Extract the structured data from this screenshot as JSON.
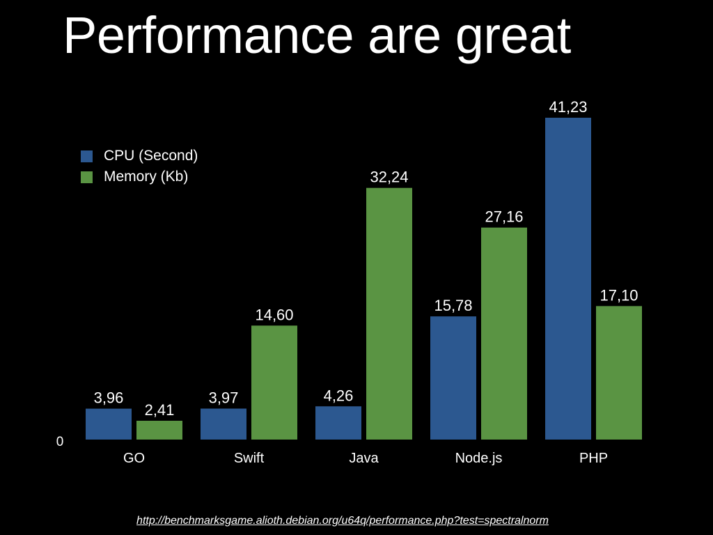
{
  "slide": {
    "title": "Performance are great",
    "source_url": "http://benchmarksgame.alioth.debian.org/u64q/performance.php?test=spectralnorm"
  },
  "colors": {
    "background": "#000000",
    "cpu": "#2c5890",
    "memory": "#5a9443",
    "text": "#ffffff"
  },
  "chart_data": {
    "type": "bar",
    "title": "Performance are great",
    "categories": [
      "GO",
      "Swift",
      "Java",
      "Node.js",
      "PHP"
    ],
    "series": [
      {
        "name": "CPU (Second)",
        "values": [
          3.96,
          3.97,
          4.26,
          15.78,
          41.23
        ],
        "labels": [
          "3,96",
          "3,97",
          "4,26",
          "15,78",
          "41,23"
        ]
      },
      {
        "name": "Memory (Kb)",
        "values": [
          2.41,
          14.6,
          32.24,
          27.16,
          17.1
        ],
        "labels": [
          "2,41",
          "14,60",
          "32,24",
          "27,16",
          "17,10"
        ]
      }
    ],
    "y_axis_labels": [
      "0"
    ],
    "ylim": [
      0,
      41.23
    ],
    "grid": false,
    "legend_position": "top-left",
    "xlabel": "",
    "ylabel": ""
  }
}
